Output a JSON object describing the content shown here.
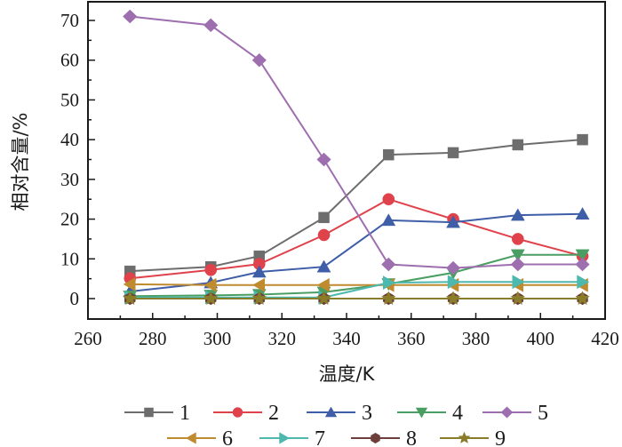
{
  "chart_data": {
    "type": "line",
    "title": "",
    "xlabel": "温度/K",
    "ylabel": "相对含量/%",
    "xlim": [
      260,
      420
    ],
    "ylim": [
      -5,
      75
    ],
    "xticks": [
      260,
      280,
      300,
      320,
      340,
      360,
      380,
      400,
      420
    ],
    "yticks": [
      0,
      10,
      20,
      30,
      40,
      50,
      60,
      70
    ],
    "grid": false,
    "legend_position": "bottom",
    "x": [
      273,
      298,
      313,
      333,
      353,
      373,
      393,
      413
    ],
    "series": [
      {
        "name": "1",
        "color": "#6d6d6d",
        "marker": "square",
        "values": [
          6.9,
          8.0,
          10.7,
          20.4,
          36.2,
          36.7,
          38.7,
          40.0
        ]
      },
      {
        "name": "2",
        "color": "#e0424b",
        "marker": "circle",
        "values": [
          5.1,
          7.2,
          8.7,
          16.0,
          25.0,
          20.0,
          15.0,
          10.7
        ]
      },
      {
        "name": "3",
        "color": "#3f5ea8",
        "marker": "triangle-up",
        "values": [
          1.8,
          4.0,
          6.7,
          8.0,
          19.7,
          19.2,
          21.0,
          21.3
        ]
      },
      {
        "name": "4",
        "color": "#4a9e63",
        "marker": "triangle-down",
        "values": [
          0.6,
          0.8,
          1.0,
          1.6,
          3.7,
          6.5,
          11.0,
          11.0
        ]
      },
      {
        "name": "5",
        "color": "#9e6faf",
        "marker": "diamond",
        "values": [
          71.0,
          68.8,
          60.0,
          35.0,
          8.6,
          7.7,
          8.6,
          8.6
        ]
      },
      {
        "name": "6",
        "color": "#c08a2e",
        "marker": "triangle-left",
        "values": [
          3.6,
          3.4,
          3.4,
          3.4,
          3.4,
          3.4,
          3.4,
          3.4
        ]
      },
      {
        "name": "7",
        "color": "#4db8ad",
        "marker": "triangle-right",
        "values": [
          0.3,
          0.3,
          0.3,
          0.3,
          4.0,
          4.2,
          4.2,
          4.2
        ]
      },
      {
        "name": "8",
        "color": "#6e3f3a",
        "marker": "hexagon",
        "values": [
          0.0,
          0.0,
          0.0,
          0.0,
          0.0,
          0.0,
          0.0,
          0.0
        ]
      },
      {
        "name": "9",
        "color": "#8a7d2a",
        "marker": "star",
        "values": [
          0.0,
          0.0,
          0.0,
          0.0,
          0.0,
          0.0,
          0.0,
          0.0
        ]
      }
    ]
  }
}
